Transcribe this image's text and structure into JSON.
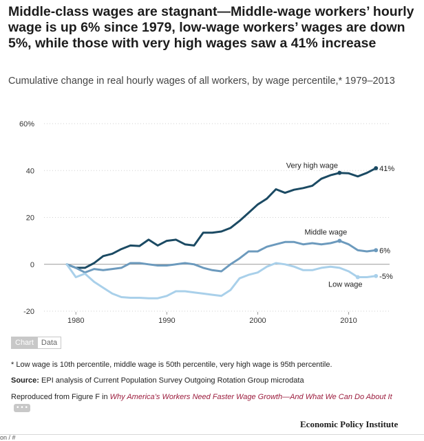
{
  "title": "Middle-class wages are stagnant—Middle-wage workers’ hourly wage is up 6% since 1979, low-wage workers’ wages are down 5%, while those with very high wages saw a 41% increase",
  "subtitle": "Cumulative change in real hourly wages of all workers, by wage percentile,* 1979–2013",
  "toggle": {
    "chart_label": "Chart",
    "data_label": "Data"
  },
  "note": "* Low wage is 10th percentile, middle wage is 50th percentile, very high wage is 95th percentile.",
  "source": {
    "label": "Source:",
    "text": " EPI analysis of Current Population Survey Outgoing Rotation Group microdata"
  },
  "repro": {
    "prefix": "Reproduced from Figure F in ",
    "link": "Why America’s Workers Need Faster Wage Growth—And What We Can Do About It",
    "more": "• • •"
  },
  "brand": "Economic Policy Institute",
  "bottom_fragment": "on / #",
  "colors": {
    "very_high": "#1b4a63",
    "middle": "#6c9abd",
    "low": "#a9d0ea",
    "grid": "#cfcfcf",
    "zero": "#999999"
  },
  "chart_data": {
    "type": "line",
    "x": [
      1979,
      1980,
      1981,
      1982,
      1983,
      1984,
      1985,
      1986,
      1987,
      1988,
      1989,
      1990,
      1991,
      1992,
      1993,
      1994,
      1995,
      1996,
      1997,
      1998,
      1999,
      2000,
      2001,
      2002,
      2003,
      2004,
      2005,
      2006,
      2007,
      2008,
      2009,
      2010,
      2011,
      2012,
      2013
    ],
    "xticks": [
      1980,
      1990,
      2000,
      2010
    ],
    "yticks": [
      -20,
      0,
      20,
      40,
      60
    ],
    "ytick_labels": [
      "-20",
      "0",
      "20",
      "40",
      "60%"
    ],
    "ylim": [
      -20,
      60
    ],
    "xlim": [
      1976.5,
      2014.5
    ],
    "series": [
      {
        "name": "Very high wage",
        "end_label": "41%",
        "color": "#1b4a63",
        "endpoint": true,
        "marker_year": 2009,
        "values": [
          0,
          -1.5,
          -1.5,
          0.5,
          3.5,
          4.5,
          6.5,
          8,
          7.8,
          10.5,
          8,
          10,
          10.5,
          8.5,
          8,
          13.5,
          13.5,
          14,
          15.5,
          18.5,
          22,
          25.5,
          28,
          32,
          30.5,
          31.8,
          32.5,
          33.5,
          36.5,
          38,
          39,
          38.8,
          37.5,
          39,
          41
        ]
      },
      {
        "name": "Middle wage",
        "end_label": "6%",
        "color": "#6c9abd",
        "endpoint": true,
        "marker_year": 2009,
        "values": [
          0,
          -1.5,
          -3.5,
          -2,
          -2.5,
          -2,
          -1.5,
          0.5,
          0.5,
          0,
          -0.5,
          -0.5,
          0,
          0.5,
          0,
          -1.5,
          -2.5,
          -3,
          0,
          2.5,
          5.5,
          5.5,
          7.5,
          8.5,
          9.5,
          9.5,
          8.5,
          9,
          8.5,
          9,
          10,
          8.5,
          6,
          5.5,
          6
        ]
      },
      {
        "name": "Low wage",
        "end_label": "-5%",
        "color": "#a9d0ea",
        "endpoint": true,
        "marker_year": 2011,
        "values": [
          0,
          -5.5,
          -4,
          -7.5,
          -10,
          -12.5,
          -14,
          -14.3,
          -14.3,
          -14.5,
          -14.5,
          -13.5,
          -11.5,
          -11.5,
          -12,
          -12.5,
          -13,
          -13.5,
          -11,
          -6,
          -4.5,
          -3.5,
          -1,
          0.5,
          0,
          -1,
          -2.5,
          -2.5,
          -1.5,
          -1,
          -1.5,
          -3,
          -5.5,
          -5.5,
          -5
        ]
      }
    ]
  }
}
